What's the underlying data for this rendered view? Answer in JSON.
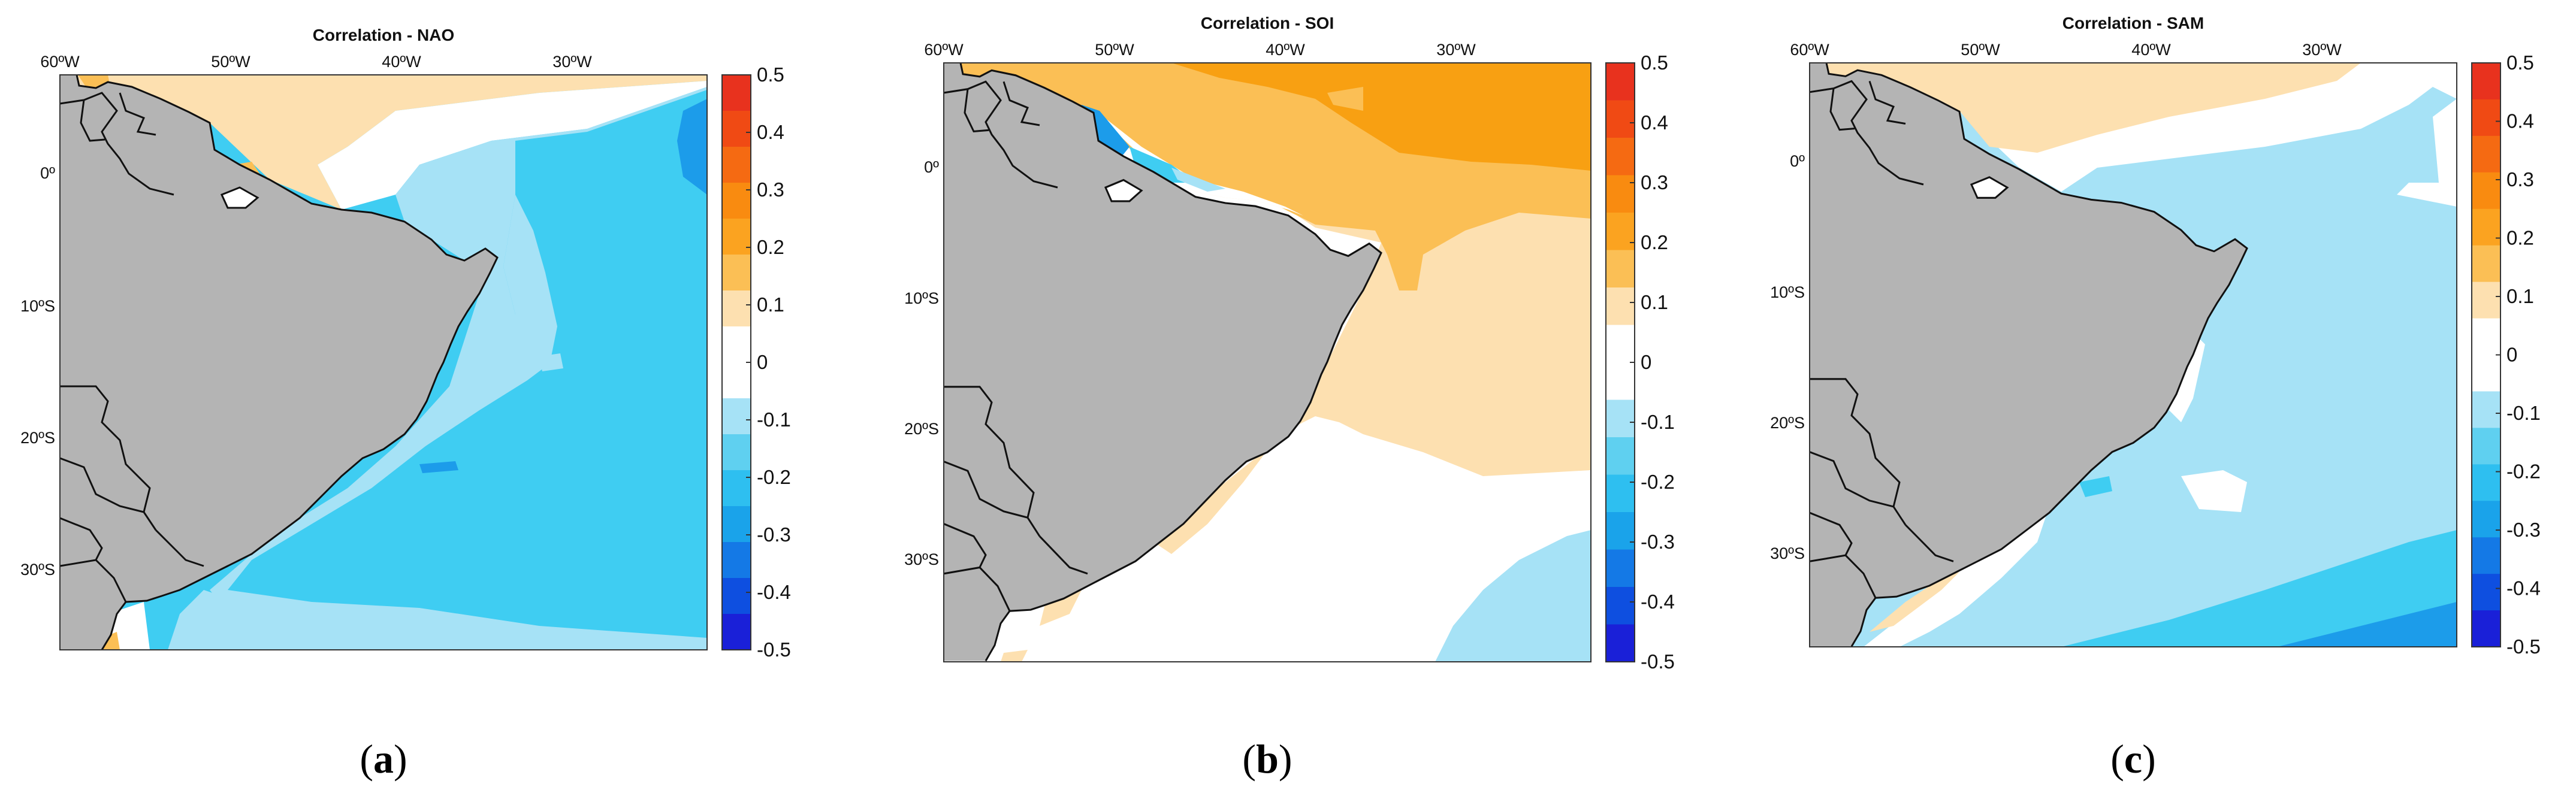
{
  "figure": {
    "panels": [
      {
        "title": "Correlation - NAO",
        "caption_letter": "a",
        "lon_labels": [
          "60ºW",
          "50ºW",
          "40ºW",
          "30ºW"
        ],
        "lat_labels": [
          "0º",
          "10ºS",
          "20ºS",
          "30ºS"
        ]
      },
      {
        "title": "Correlation - SOI",
        "caption_letter": "b",
        "lon_labels": [
          "60ºW",
          "50ºW",
          "40ºW",
          "30ºW"
        ],
        "lat_labels": [
          "0º",
          "10ºS",
          "20ºS",
          "30ºS"
        ]
      },
      {
        "title": "Correlation - SAM",
        "caption_letter": "c",
        "lon_labels": [
          "60ºW",
          "50ºW",
          "40ºW",
          "30ºW"
        ],
        "lat_labels": [
          "0º",
          "10ºS",
          "20ºS",
          "30ºS"
        ]
      }
    ],
    "colorbar": {
      "tick_labels": [
        "0.5",
        "0.4",
        "0.3",
        "0.2",
        "0.1",
        "0",
        "-0.1",
        "-0.2",
        "-0.3",
        "-0.4",
        "-0.5"
      ],
      "colors_top_to_bottom": [
        "#e8321e",
        "#f04a14",
        "#f56a12",
        "#f98b10",
        "#fba320",
        "#fbbf55",
        "#fde0b0",
        "#ffffff",
        "#ffffff",
        "#a6e2f6",
        "#5fd0f0",
        "#2ebff0",
        "#1aa3ea",
        "#1479e6",
        "#0e4fe0",
        "#1a20d8"
      ]
    },
    "colors": {
      "land": "#b4b4b4",
      "ocean_neutral": "#ffffff",
      "pos_weak": "#fde0b0",
      "pos_mid": "#fbbf55",
      "pos_strong": "#f8a012",
      "neg_weak": "#a6e2f6",
      "neg_mid": "#3fcdf2",
      "neg_strong": "#1c9cea",
      "neg_deep": "#1579e4"
    }
  }
}
